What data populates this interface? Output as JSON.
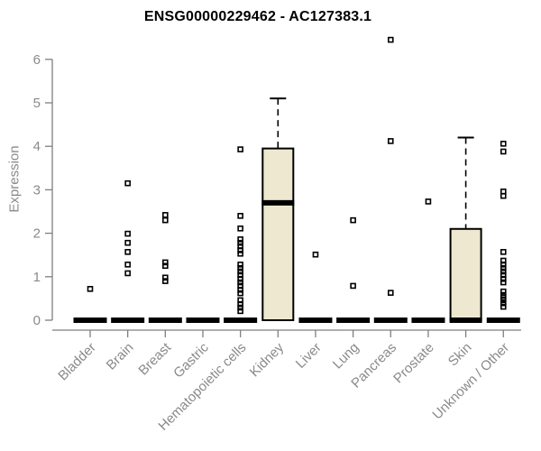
{
  "chart_data": {
    "type": "boxplot",
    "title": "ENSG00000229462 - AC127383.1",
    "ylabel": "Expression",
    "xlabel": "",
    "ylim": [
      0,
      6.5
    ],
    "yticks": [
      0,
      1,
      2,
      3,
      4,
      5,
      6
    ],
    "grid": false,
    "legend": "none",
    "colors": {
      "box_fill": "#ede8cf",
      "box_stroke": "#000000",
      "median": "#000000",
      "outlier": "#000000",
      "axis": "#7f7f7f",
      "text": "#8a8a8a",
      "title": "#000000",
      "background": "#ffffff"
    },
    "categories": [
      {
        "label": "Bladder",
        "q1": 0,
        "median": 0,
        "q3": 0,
        "whisker_high": 0,
        "outliers": [
          0.72
        ]
      },
      {
        "label": "Brain",
        "q1": 0,
        "median": 0,
        "q3": 0,
        "whisker_high": 0,
        "outliers": [
          3.15,
          1.99,
          1.78,
          1.57,
          1.28,
          1.08
        ]
      },
      {
        "label": "Breast",
        "q1": 0,
        "median": 0,
        "q3": 0,
        "whisker_high": 0,
        "outliers": [
          2.42,
          2.3,
          1.33,
          1.25,
          0.98,
          0.9
        ]
      },
      {
        "label": "Gastric",
        "q1": 0,
        "median": 0,
        "q3": 0,
        "whisker_high": 0,
        "outliers": []
      },
      {
        "label": "Hematopoietic cells",
        "q1": 0,
        "median": 0,
        "q3": 0,
        "whisker_high": 0,
        "outliers": [
          3.93,
          2.4,
          2.11,
          1.86,
          1.78,
          1.7,
          1.61,
          1.53,
          1.28,
          1.2,
          1.12,
          1.04,
          0.95,
          0.87,
          0.79,
          0.7,
          0.62,
          0.46,
          0.37,
          0.29,
          0.21
        ]
      },
      {
        "label": "Kidney",
        "q1": 0,
        "median": 2.7,
        "q3": 3.95,
        "whisker_high": 5.1,
        "outliers": []
      },
      {
        "label": "Liver",
        "q1": 0,
        "median": 0,
        "q3": 0,
        "whisker_high": 0,
        "outliers": [
          1.51
        ]
      },
      {
        "label": "Lung",
        "q1": 0,
        "median": 0,
        "q3": 0,
        "whisker_high": 0,
        "outliers": [
          2.3,
          0.79
        ]
      },
      {
        "label": "Pancreas",
        "q1": 0,
        "median": 0,
        "q3": 0,
        "whisker_high": 0,
        "outliers": [
          6.45,
          4.12,
          0.63
        ]
      },
      {
        "label": "Prostate",
        "q1": 0,
        "median": 0,
        "q3": 0,
        "whisker_high": 0,
        "outliers": [
          2.73
        ]
      },
      {
        "label": "Skin",
        "q1": 0,
        "median": 0,
        "q3": 2.1,
        "whisker_high": 4.2,
        "outliers": []
      },
      {
        "label": "Unknown / Other",
        "q1": 0,
        "median": 0,
        "q3": 0,
        "whisker_high": 0,
        "outliers": [
          4.06,
          3.88,
          2.96,
          2.86,
          1.57,
          1.37,
          1.28,
          1.2,
          1.12,
          1.04,
          0.95,
          0.87,
          0.66,
          0.58,
          0.52,
          0.46,
          0.39,
          0.31
        ]
      }
    ]
  }
}
